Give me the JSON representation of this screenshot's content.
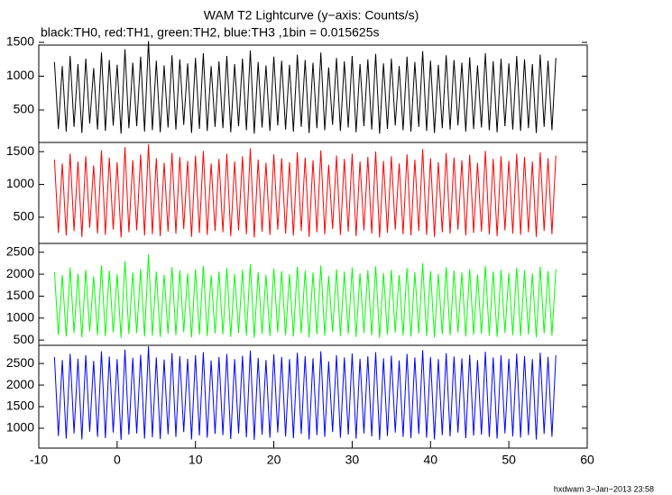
{
  "footer": "hxdwam  3−Jan−2013 23:58",
  "chart_data": [
    {
      "type": "line",
      "title": "WAM T2 Lightcurve (y−axis: Counts/s)",
      "subtitle": "black:TH0, red:TH1, green:TH2, blue:TH3 ,1bin = 0.015625s",
      "color": "#000000",
      "xlim": [
        -10,
        60
      ],
      "ylim": [
        20,
        1460
      ],
      "yticks": [
        500,
        1000,
        1500
      ],
      "x": [
        -8,
        -7.5,
        -7,
        -6.5,
        -6,
        -5.5,
        -5,
        -4.5,
        -4,
        -3.5,
        -3,
        -2.5,
        -2,
        -1.5,
        -1,
        -0.5,
        0,
        0.5,
        1,
        1.5,
        2,
        2.5,
        3,
        3.5,
        4,
        4.5,
        5,
        5.5,
        6,
        6.5,
        7,
        7.5,
        8,
        8.5,
        9,
        9.5,
        10,
        10.5,
        11,
        11.5,
        12,
        12.5,
        13,
        13.5,
        14,
        14.5,
        15,
        15.5,
        16,
        16.5,
        17,
        17.5,
        18,
        18.5,
        19,
        19.5,
        20,
        20.5,
        21,
        21.5,
        22,
        22.5,
        23,
        23.5,
        24,
        24.5,
        25,
        25.5,
        26,
        26.5,
        27,
        27.5,
        28,
        28.5,
        29,
        29.5,
        30,
        30.5,
        31,
        31.5,
        32,
        32.5,
        33,
        33.5,
        34,
        34.5,
        35,
        35.5,
        36,
        36.5,
        37,
        37.5,
        38,
        38.5,
        39,
        39.5,
        40,
        40.5,
        41,
        41.5,
        42,
        42.5,
        43,
        43.5,
        44,
        44.5,
        45,
        45.5,
        46,
        46.5,
        47,
        47.5,
        48,
        48.5,
        49,
        49.5,
        50,
        50.5,
        51,
        51.5,
        52,
        52.5,
        53,
        53.5,
        54,
        54.5,
        55,
        55.5,
        56
      ],
      "values": [
        1210,
        220,
        1150,
        180,
        1300,
        250,
        1180,
        160,
        1260,
        300,
        1120,
        210,
        1350,
        190,
        1240,
        270,
        1170,
        150,
        1400,
        230,
        1200,
        260,
        1290,
        180,
        1520,
        200,
        1230,
        170,
        1160,
        240,
        1310,
        210,
        1250,
        280,
        1190,
        160,
        1270,
        220,
        1340,
        190,
        1150,
        250,
        1220,
        230,
        1300,
        170,
        1180,
        260,
        1260,
        200,
        1380,
        150,
        1210,
        240,
        1160,
        190,
        1290,
        270,
        1230,
        210,
        1170,
        180,
        1320,
        250,
        1240,
        160,
        1200,
        230,
        1350,
        200,
        1130,
        280,
        1270,
        190,
        1220,
        240,
        1300,
        170,
        1180,
        260,
        1250,
        210,
        1330,
        150,
        1190,
        220,
        1260,
        270,
        1150,
        200,
        1290,
        180,
        1210,
        250,
        1370,
        190,
        1230,
        160,
        1170,
        230,
        1310,
        210,
        1240,
        270,
        1200,
        180,
        1280,
        220,
        1160,
        240,
        1340,
        200,
        1220,
        170,
        1260,
        260,
        1190,
        210,
        1300,
        190,
        1250,
        230,
        1180,
        160,
        1320,
        250,
        1230,
        200,
        1270
      ]
    },
    {
      "type": "line",
      "color": "#ff0000",
      "xlim": [
        -10,
        60
      ],
      "ylim": [
        100,
        1640
      ],
      "yticks": [
        500,
        1000,
        1500
      ],
      "x": [
        -8,
        -7.5,
        -7,
        -6.5,
        -6,
        -5.5,
        -5,
        -4.5,
        -4,
        -3.5,
        -3,
        -2.5,
        -2,
        -1.5,
        -1,
        -0.5,
        0,
        0.5,
        1,
        1.5,
        2,
        2.5,
        3,
        3.5,
        4,
        4.5,
        5,
        5.5,
        6,
        6.5,
        7,
        7.5,
        8,
        8.5,
        9,
        9.5,
        10,
        10.5,
        11,
        11.5,
        12,
        12.5,
        13,
        13.5,
        14,
        14.5,
        15,
        15.5,
        16,
        16.5,
        17,
        17.5,
        18,
        18.5,
        19,
        19.5,
        20,
        20.5,
        21,
        21.5,
        22,
        22.5,
        23,
        23.5,
        24,
        24.5,
        25,
        25.5,
        26,
        26.5,
        27,
        27.5,
        28,
        28.5,
        29,
        29.5,
        30,
        30.5,
        31,
        31.5,
        32,
        32.5,
        33,
        33.5,
        34,
        34.5,
        35,
        35.5,
        36,
        36.5,
        37,
        37.5,
        38,
        38.5,
        39,
        39.5,
        40,
        40.5,
        41,
        41.5,
        42,
        42.5,
        43,
        43.5,
        44,
        44.5,
        45,
        45.5,
        46,
        46.5,
        47,
        47.5,
        48,
        48.5,
        49,
        49.5,
        50,
        50.5,
        51,
        51.5,
        52,
        52.5,
        53,
        53.5,
        54,
        54.5,
        55,
        55.5,
        56
      ],
      "values": [
        1380,
        260,
        1320,
        220,
        1470,
        290,
        1350,
        200,
        1430,
        340,
        1290,
        250,
        1520,
        230,
        1410,
        310,
        1340,
        190,
        1570,
        270,
        1370,
        300,
        1460,
        220,
        1610,
        240,
        1400,
        210,
        1330,
        280,
        1480,
        250,
        1420,
        320,
        1360,
        200,
        1440,
        260,
        1510,
        230,
        1320,
        290,
        1390,
        270,
        1470,
        210,
        1350,
        300,
        1430,
        240,
        1550,
        190,
        1380,
        280,
        1330,
        230,
        1460,
        310,
        1400,
        250,
        1340,
        220,
        1490,
        290,
        1410,
        200,
        1370,
        270,
        1520,
        240,
        1300,
        320,
        1440,
        230,
        1390,
        280,
        1470,
        210,
        1350,
        300,
        1420,
        250,
        1500,
        190,
        1360,
        260,
        1430,
        310,
        1320,
        240,
        1460,
        220,
        1380,
        290,
        1540,
        230,
        1400,
        200,
        1340,
        270,
        1480,
        250,
        1410,
        310,
        1370,
        220,
        1450,
        260,
        1330,
        280,
        1510,
        240,
        1390,
        210,
        1430,
        300,
        1360,
        250,
        1470,
        230,
        1420,
        270,
        1350,
        200,
        1490,
        290,
        1400,
        240,
        1440
      ]
    },
    {
      "type": "line",
      "color": "#00ff00",
      "xlim": [
        -10,
        60
      ],
      "ylim": [
        380,
        2700
      ],
      "yticks": [
        500,
        1000,
        1500,
        2000,
        2500
      ],
      "x": [
        -8,
        -7.5,
        -7,
        -6.5,
        -6,
        -5.5,
        -5,
        -4.5,
        -4,
        -3.5,
        -3,
        -2.5,
        -2,
        -1.5,
        -1,
        -0.5,
        0,
        0.5,
        1,
        1.5,
        2,
        2.5,
        3,
        3.5,
        4,
        4.5,
        5,
        5.5,
        6,
        6.5,
        7,
        7.5,
        8,
        8.5,
        9,
        9.5,
        10,
        10.5,
        11,
        11.5,
        12,
        12.5,
        13,
        13.5,
        14,
        14.5,
        15,
        15.5,
        16,
        16.5,
        17,
        17.5,
        18,
        18.5,
        19,
        19.5,
        20,
        20.5,
        21,
        21.5,
        22,
        22.5,
        23,
        23.5,
        24,
        24.5,
        25,
        25.5,
        26,
        26.5,
        27,
        27.5,
        28,
        28.5,
        29,
        29.5,
        30,
        30.5,
        31,
        31.5,
        32,
        32.5,
        33,
        33.5,
        34,
        34.5,
        35,
        35.5,
        36,
        36.5,
        37,
        37.5,
        38,
        38.5,
        39,
        39.5,
        40,
        40.5,
        41,
        41.5,
        42,
        42.5,
        43,
        43.5,
        44,
        44.5,
        45,
        45.5,
        46,
        46.5,
        47,
        47.5,
        48,
        48.5,
        49,
        49.5,
        50,
        50.5,
        51,
        51.5,
        52,
        52.5,
        53,
        53.5,
        54,
        54.5,
        55,
        55.5,
        56
      ],
      "values": [
        2050,
        620,
        1980,
        580,
        2150,
        660,
        2010,
        560,
        2100,
        700,
        1950,
        610,
        2200,
        590,
        2080,
        670,
        2000,
        550,
        2300,
        640,
        2040,
        660,
        2120,
        580,
        2450,
        600,
        2060,
        570,
        1990,
        640,
        2160,
        610,
        2090,
        680,
        2020,
        560,
        2110,
        620,
        2190,
        590,
        1980,
        650,
        2060,
        630,
        2140,
        570,
        2010,
        660,
        2100,
        600,
        2230,
        550,
        2050,
        640,
        1990,
        590,
        2130,
        670,
        2070,
        610,
        2000,
        580,
        2170,
        650,
        2080,
        560,
        2040,
        630,
        2200,
        600,
        1960,
        680,
        2110,
        590,
        2060,
        640,
        2150,
        570,
        2020,
        660,
        2090,
        610,
        2180,
        550,
        2030,
        620,
        2100,
        670,
        1980,
        600,
        2140,
        580,
        2050,
        650,
        2250,
        590,
        2070,
        560,
        2010,
        630,
        2160,
        610,
        2080,
        670,
        2040,
        580,
        2120,
        620,
        1990,
        640,
        2190,
        600,
        2060,
        570,
        2100,
        660,
        2030,
        610,
        2150,
        590,
        2090,
        630,
        2020,
        560,
        2170,
        650,
        2070,
        600,
        2110
      ]
    },
    {
      "type": "line",
      "color": "#0000ff",
      "xlim": [
        -10,
        60
      ],
      "ylim": [
        540,
        2920
      ],
      "yticks": [
        1000,
        1500,
        2000,
        2500
      ],
      "xticks": [
        -10,
        0,
        10,
        20,
        30,
        40,
        50,
        60
      ],
      "x": [
        -8,
        -7.5,
        -7,
        -6.5,
        -6,
        -5.5,
        -5,
        -4.5,
        -4,
        -3.5,
        -3,
        -2.5,
        -2,
        -1.5,
        -1,
        -0.5,
        0,
        0.5,
        1,
        1.5,
        2,
        2.5,
        3,
        3.5,
        4,
        4.5,
        5,
        5.5,
        6,
        6.5,
        7,
        7.5,
        8,
        8.5,
        9,
        9.5,
        10,
        10.5,
        11,
        11.5,
        12,
        12.5,
        13,
        13.5,
        14,
        14.5,
        15,
        15.5,
        16,
        16.5,
        17,
        17.5,
        18,
        18.5,
        19,
        19.5,
        20,
        20.5,
        21,
        21.5,
        22,
        22.5,
        23,
        23.5,
        24,
        24.5,
        25,
        25.5,
        26,
        26.5,
        27,
        27.5,
        28,
        28.5,
        29,
        29.5,
        30,
        30.5,
        31,
        31.5,
        32,
        32.5,
        33,
        33.5,
        34,
        34.5,
        35,
        35.5,
        36,
        36.5,
        37,
        37.5,
        38,
        38.5,
        39,
        39.5,
        40,
        40.5,
        41,
        41.5,
        42,
        42.5,
        43,
        43.5,
        44,
        44.5,
        45,
        45.5,
        46,
        46.5,
        47,
        47.5,
        48,
        48.5,
        49,
        49.5,
        50,
        50.5,
        51,
        51.5,
        52,
        52.5,
        53,
        53.5,
        54,
        54.5,
        55,
        55.5,
        56
      ],
      "values": [
        2650,
        820,
        2580,
        760,
        2720,
        880,
        2610,
        740,
        2690,
        920,
        2560,
        800,
        2780,
        770,
        2660,
        900,
        2600,
        730,
        2820,
        850,
        2630,
        880,
        2700,
        760,
        2900,
        790,
        2640,
        750,
        2590,
        860,
        2740,
        800,
        2670,
        910,
        2610,
        740,
        2690,
        830,
        2760,
        780,
        2570,
        870,
        2650,
        840,
        2720,
        750,
        2600,
        880,
        2680,
        790,
        2800,
        730,
        2630,
        850,
        2580,
        780,
        2710,
        900,
        2650,
        810,
        2600,
        770,
        2750,
        870,
        2670,
        740,
        2620,
        840,
        2780,
        800,
        2550,
        910,
        2690,
        780,
        2640,
        850,
        2730,
        760,
        2610,
        880,
        2670,
        810,
        2760,
        730,
        2620,
        820,
        2680,
        900,
        2570,
        800,
        2720,
        770,
        2640,
        870,
        2810,
        780,
        2650,
        740,
        2600,
        840,
        2740,
        810,
        2660,
        900,
        2620,
        770,
        2700,
        830,
        2580,
        850,
        2770,
        800,
        2640,
        760,
        2690,
        880,
        2610,
        810,
        2730,
        780,
        2670,
        840,
        2600,
        740,
        2750,
        870,
        2650,
        800,
        2690
      ]
    }
  ]
}
